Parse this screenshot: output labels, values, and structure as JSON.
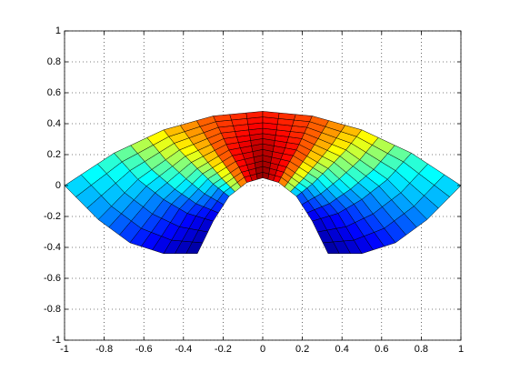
{
  "chart_data": {
    "type": "surface",
    "x": [
      [
        -0.33,
        -0.25,
        -0.17,
        -0.08,
        0,
        0.08,
        0.17,
        0.25,
        0.33
      ],
      [
        -0.5,
        -0.38,
        -0.25,
        -0.12,
        0,
        0.12,
        0.25,
        0.38,
        0.5
      ],
      [
        -0.67,
        -0.5,
        -0.33,
        -0.17,
        0,
        0.17,
        0.33,
        0.5,
        0.67
      ],
      [
        -0.83,
        -0.63,
        -0.42,
        -0.21,
        0,
        0.21,
        0.42,
        0.63,
        0.83
      ],
      [
        -1,
        -0.75,
        -0.5,
        -0.25,
        0,
        0.25,
        0.5,
        0.75,
        1
      ]
    ],
    "y": [
      [
        -0.44,
        -0.23,
        -0.07,
        0.02,
        0.05,
        0.02,
        -0.07,
        -0.23,
        -0.44
      ],
      [
        -0.44,
        -0.18,
        0.01,
        0.12,
        0.16,
        0.12,
        0.01,
        -0.18,
        -0.44
      ],
      [
        -0.37,
        -0.09,
        0.11,
        0.23,
        0.27,
        0.23,
        0.11,
        -0.09,
        -0.37
      ],
      [
        -0.22,
        0.04,
        0.23,
        0.34,
        0.37,
        0.34,
        0.23,
        0.04,
        -0.22
      ],
      [
        0,
        0.21,
        0.36,
        0.45,
        0.48,
        0.45,
        0.36,
        0.21,
        0
      ]
    ],
    "z": [
      [
        0.02,
        0.08,
        0.2,
        0.85,
        1,
        0.85,
        0.2,
        0.08,
        0.02
      ],
      [
        0.08,
        0.15,
        0.35,
        0.85,
        0.98,
        0.85,
        0.35,
        0.15,
        0.08
      ],
      [
        0.15,
        0.25,
        0.5,
        0.85,
        0.95,
        0.85,
        0.5,
        0.25,
        0.15
      ],
      [
        0.25,
        0.35,
        0.6,
        0.82,
        0.9,
        0.82,
        0.6,
        0.35,
        0.25
      ],
      [
        0.33,
        0.45,
        0.68,
        0.8,
        0.85,
        0.8,
        0.68,
        0.45,
        0.33
      ]
    ],
    "colormap": "jet",
    "zlim": [
      0,
      1
    ],
    "xlim": [
      -1,
      1
    ],
    "ylim": [
      -1,
      1
    ],
    "xticks": [
      -1,
      -0.8,
      -0.6,
      -0.4,
      -0.2,
      0,
      0.2,
      0.4,
      0.6,
      0.8,
      1
    ],
    "yticks": [
      -1,
      -0.8,
      -0.6,
      -0.4,
      -0.2,
      0,
      0.2,
      0.4,
      0.6,
      0.8,
      1
    ],
    "grid": true
  }
}
